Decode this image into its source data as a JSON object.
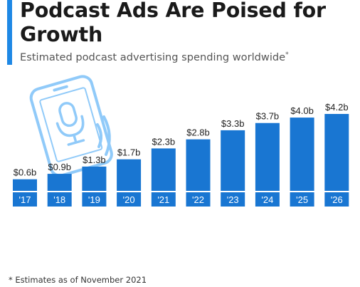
{
  "header": {
    "title": "Podcast Ads Are Poised for Growth",
    "subtitle": "Estimated podcast advertising spending worldwide",
    "subtitle_mark": "*"
  },
  "footnote": "* Estimates as of November 2021",
  "colors": {
    "accent": "#1e88e5",
    "bar": "#1976d2",
    "illustration": "#90caf9"
  },
  "illustration": {
    "icon": "smartphone-microphone-icon"
  },
  "chart_data": {
    "type": "bar",
    "categories": [
      "'17",
      "'18",
      "'19",
      "'20",
      "'21",
      "'22",
      "'23",
      "'24",
      "'25",
      "'26"
    ],
    "values": [
      0.6,
      0.9,
      1.3,
      1.7,
      2.3,
      2.8,
      3.3,
      3.7,
      4.0,
      4.2
    ],
    "value_labels": [
      "$0.6b",
      "$0.9b",
      "$1.3b",
      "$1.7b",
      "$2.3b",
      "$2.8b",
      "$3.3b",
      "$3.7b",
      "$4.0b",
      "$4.2b"
    ],
    "title": "",
    "xlabel": "",
    "ylabel": "",
    "ylim": [
      0,
      4.2
    ],
    "grid": false,
    "legend": "none"
  }
}
